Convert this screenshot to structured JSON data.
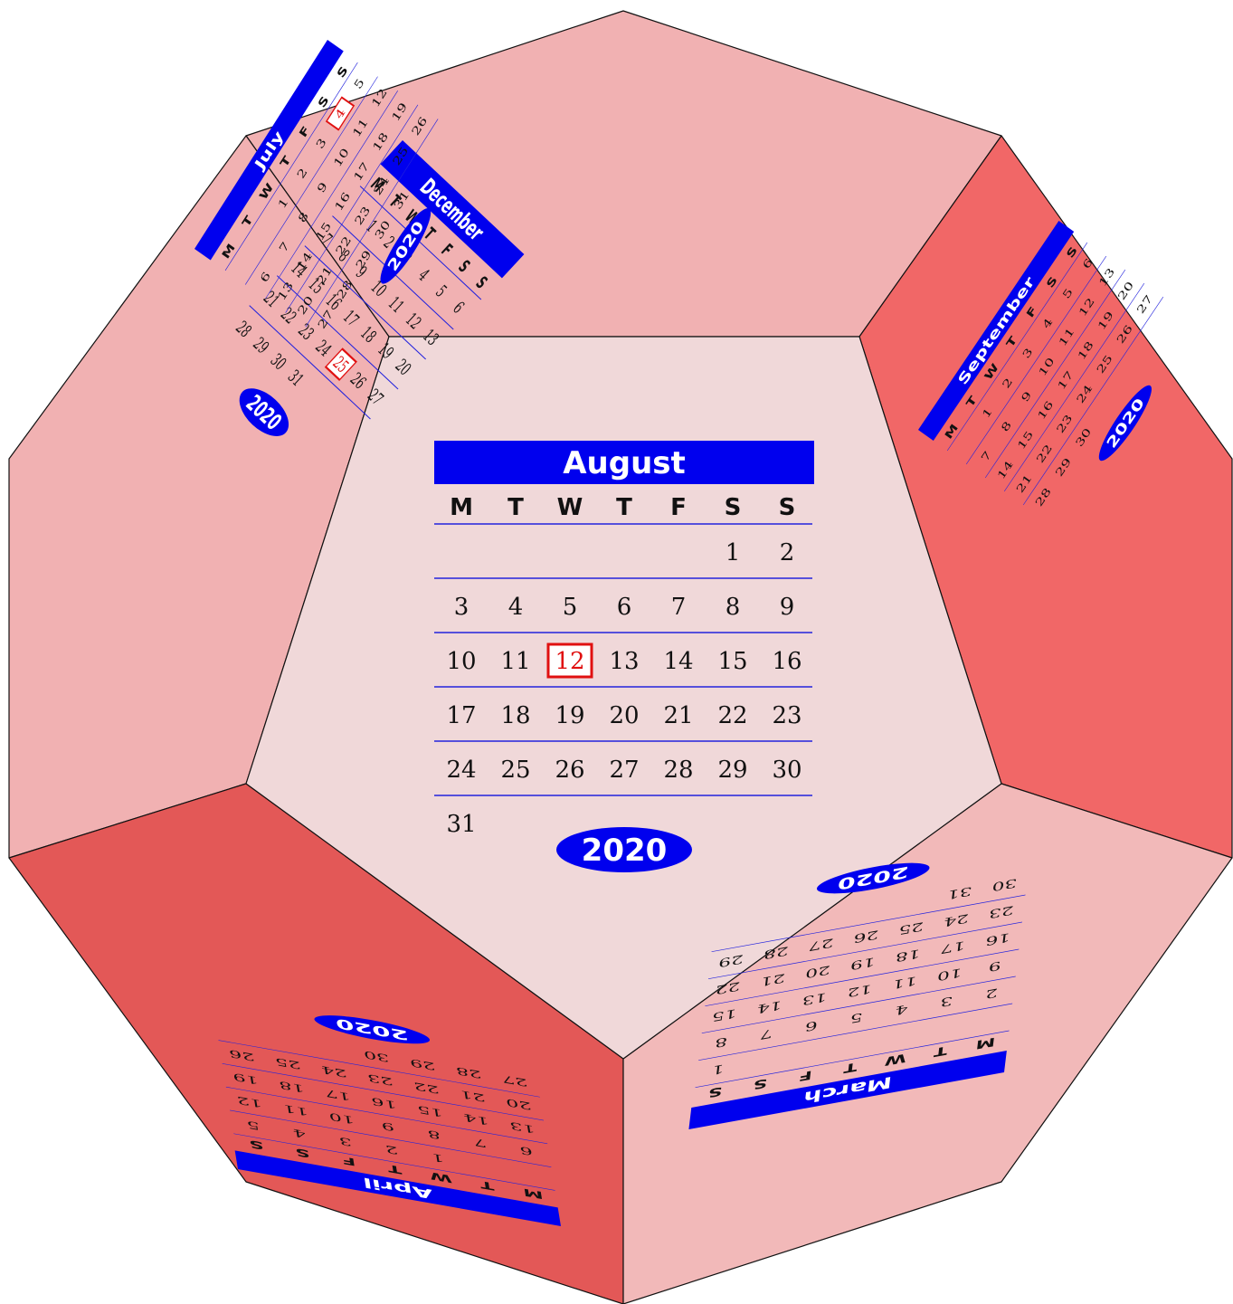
{
  "year": "2020",
  "weekday_letters": [
    "M",
    "T",
    "W",
    "T",
    "F",
    "S",
    "S"
  ],
  "colors": {
    "header_blue": "#0000ee",
    "rule_blue": "#2222dd",
    "highlight_red": "#e01010",
    "front_face": "#f0d8d9",
    "face_light": "#f1b1b2",
    "face_medium": "#f2b9b9",
    "face_dark": "#e35857",
    "face_darker": "#f16767",
    "edge": "#111111",
    "text": "#111111"
  },
  "faces": {
    "front": {
      "month": "August",
      "rows": [
        [
          "",
          "",
          "",
          "",
          "",
          "1",
          "2"
        ],
        [
          "3",
          "4",
          "5",
          "6",
          "7",
          "8",
          "9"
        ],
        [
          "10",
          "11",
          "12",
          "13",
          "14",
          "15",
          "16"
        ],
        [
          "17",
          "18",
          "19",
          "20",
          "21",
          "22",
          "23"
        ],
        [
          "24",
          "25",
          "26",
          "27",
          "28",
          "29",
          "30"
        ],
        [
          "31",
          "",
          "",
          "",
          "",
          "",
          ""
        ]
      ],
      "highlight": "12"
    },
    "top": {
      "month": "December",
      "rows": [
        [
          "",
          "1",
          "2",
          "3",
          "4",
          "5",
          "6"
        ],
        [
          "7",
          "8",
          "9",
          "10",
          "11",
          "12",
          "13"
        ],
        [
          "14",
          "15",
          "16",
          "17",
          "18",
          "19",
          "20"
        ],
        [
          "21",
          "22",
          "23",
          "24",
          "25",
          "26",
          "27"
        ],
        [
          "28",
          "29",
          "30",
          "31",
          "",
          "",
          ""
        ]
      ],
      "highlight": "25"
    },
    "upper_left": {
      "month": "July",
      "rows": [
        [
          "",
          "",
          "1",
          "2",
          "3",
          "4",
          "5"
        ],
        [
          "6",
          "7",
          "8",
          "9",
          "10",
          "11",
          "12"
        ],
        [
          "13",
          "14",
          "15",
          "16",
          "17",
          "18",
          "19"
        ],
        [
          "20",
          "21",
          "22",
          "23",
          "24",
          "25",
          "26"
        ],
        [
          "27",
          "28",
          "29",
          "30",
          "31",
          "",
          ""
        ]
      ],
      "highlight": "4"
    },
    "upper_right": {
      "month": "September",
      "rows": [
        [
          "",
          "1",
          "2",
          "3",
          "4",
          "5",
          "6"
        ],
        [
          "7",
          "8",
          "9",
          "10",
          "11",
          "12",
          "13"
        ],
        [
          "14",
          "15",
          "16",
          "17",
          "18",
          "19",
          "20"
        ],
        [
          "21",
          "22",
          "23",
          "24",
          "25",
          "26",
          "27"
        ],
        [
          "28",
          "29",
          "30",
          "",
          "",
          "",
          ""
        ]
      ],
      "highlight": ""
    },
    "lower_left": {
      "month": "April",
      "rows": [
        [
          "",
          "",
          "1",
          "2",
          "3",
          "4",
          "5"
        ],
        [
          "6",
          "7",
          "8",
          "9",
          "10",
          "11",
          "12"
        ],
        [
          "13",
          "14",
          "15",
          "16",
          "17",
          "18",
          "19"
        ],
        [
          "20",
          "21",
          "22",
          "23",
          "24",
          "25",
          "26"
        ],
        [
          "27",
          "28",
          "29",
          "30",
          "",
          "",
          ""
        ]
      ],
      "highlight": ""
    },
    "lower_right": {
      "month": "March",
      "rows": [
        [
          "",
          "",
          "",
          "",
          "",
          "",
          "1"
        ],
        [
          "2",
          "3",
          "4",
          "5",
          "6",
          "7",
          "8"
        ],
        [
          "9",
          "10",
          "11",
          "12",
          "13",
          "14",
          "15"
        ],
        [
          "16",
          "17",
          "18",
          "19",
          "20",
          "21",
          "22"
        ],
        [
          "23",
          "24",
          "25",
          "26",
          "27",
          "28",
          "29"
        ],
        [
          "30",
          "31",
          "",
          "",
          "",
          "",
          ""
        ]
      ],
      "highlight": ""
    }
  }
}
